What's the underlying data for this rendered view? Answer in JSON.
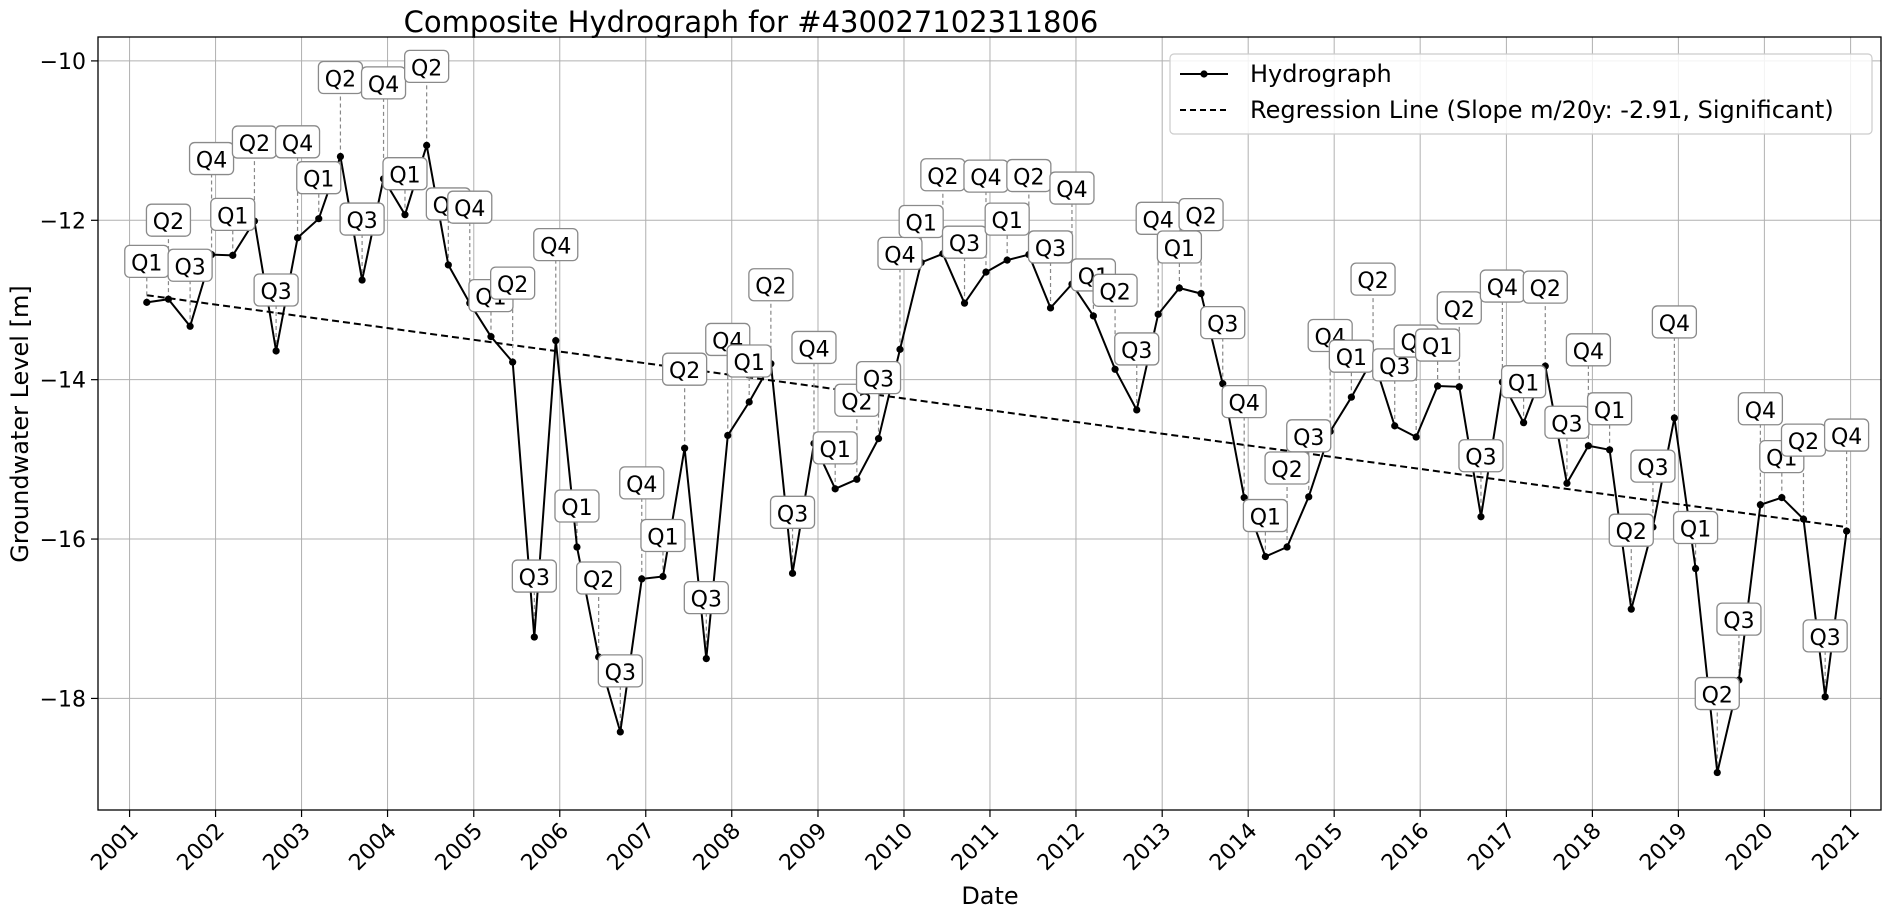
{
  "chart_data": {
    "type": "line",
    "title": "Composite Hydrograph for  #430027102311806",
    "xlabel": "Date",
    "ylabel": "Groundwater Level [m]",
    "x_ticks": [
      "2001",
      "2002",
      "2003",
      "2004",
      "2005",
      "2006",
      "2007",
      "2008",
      "2009",
      "2010",
      "2011",
      "2012",
      "2013",
      "2014",
      "2015",
      "2016",
      "2017",
      "2018",
      "2019",
      "2020",
      "2021"
    ],
    "y_ticks": [
      -18,
      -16,
      -14,
      -12,
      -10
    ],
    "y_tick_labels": [
      "−18",
      "−16",
      "−14",
      "−12",
      "−10"
    ],
    "ylim": [
      -19.4,
      -9.7
    ],
    "xlim": [
      "2000-08-20",
      "2021-05-10"
    ],
    "grid": true,
    "legend_position": "top-right",
    "series": [
      {
        "name": "Hydrograph",
        "style": "solid line with dot markers",
        "color": "#000000",
        "points": [
          {
            "x": "2001-03-15",
            "y": -13.03,
            "label": "Q1"
          },
          {
            "x": "2001-06-15",
            "y": -12.99,
            "label": "Q2"
          },
          {
            "x": "2001-09-15",
            "y": -13.33,
            "label": "Q3"
          },
          {
            "x": "2001-12-15",
            "y": -12.43,
            "label": "Q4"
          },
          {
            "x": "2002-03-15",
            "y": -12.44,
            "label": "Q1"
          },
          {
            "x": "2002-06-15",
            "y": -12.01,
            "label": "Q2"
          },
          {
            "x": "2002-09-15",
            "y": -13.64,
            "label": "Q3"
          },
          {
            "x": "2002-12-15",
            "y": -12.22,
            "label": "Q4"
          },
          {
            "x": "2003-03-15",
            "y": -11.98,
            "label": "Q1"
          },
          {
            "x": "2003-06-15",
            "y": -11.2,
            "label": "Q2"
          },
          {
            "x": "2003-09-15",
            "y": -12.75,
            "label": "Q3"
          },
          {
            "x": "2003-12-15",
            "y": -11.48,
            "label": "Q4"
          },
          {
            "x": "2004-03-15",
            "y": -11.93,
            "label": "Q1"
          },
          {
            "x": "2004-06-15",
            "y": -11.06,
            "label": "Q2"
          },
          {
            "x": "2004-09-15",
            "y": -12.56,
            "label": "Q3"
          },
          {
            "x": "2004-12-15",
            "y": -13.04,
            "label": "Q4"
          },
          {
            "x": "2005-03-15",
            "y": -13.46,
            "label": "Q1"
          },
          {
            "x": "2005-06-15",
            "y": -13.78,
            "label": "Q2"
          },
          {
            "x": "2005-09-15",
            "y": -17.23,
            "label": "Q3"
          },
          {
            "x": "2005-12-15",
            "y": -13.51,
            "label": "Q4"
          },
          {
            "x": "2006-03-15",
            "y": -16.1,
            "label": "Q1"
          },
          {
            "x": "2006-06-15",
            "y": -17.48,
            "label": "Q2"
          },
          {
            "x": "2006-09-15",
            "y": -18.42,
            "label": "Q3"
          },
          {
            "x": "2006-12-15",
            "y": -16.5,
            "label": "Q4"
          },
          {
            "x": "2007-03-15",
            "y": -16.47,
            "label": "Q1"
          },
          {
            "x": "2007-06-15",
            "y": -14.86,
            "label": "Q2"
          },
          {
            "x": "2007-09-15",
            "y": -17.5,
            "label": "Q3"
          },
          {
            "x": "2007-12-15",
            "y": -14.7,
            "label": "Q4"
          },
          {
            "x": "2008-03-15",
            "y": -14.28,
            "label": "Q1"
          },
          {
            "x": "2008-06-15",
            "y": -13.8,
            "label": "Q2"
          },
          {
            "x": "2008-09-15",
            "y": -16.43,
            "label": "Q3"
          },
          {
            "x": "2008-12-15",
            "y": -14.8,
            "label": "Q4"
          },
          {
            "x": "2009-03-15",
            "y": -15.37,
            "label": "Q1"
          },
          {
            "x": "2009-06-15",
            "y": -15.25,
            "label": "Q2"
          },
          {
            "x": "2009-09-15",
            "y": -14.74,
            "label": "Q3"
          },
          {
            "x": "2009-12-15",
            "y": -13.62,
            "label": "Q4"
          },
          {
            "x": "2010-03-15",
            "y": -12.53,
            "label": "Q1"
          },
          {
            "x": "2010-06-15",
            "y": -12.42,
            "label": "Q2"
          },
          {
            "x": "2010-09-15",
            "y": -13.04,
            "label": "Q3"
          },
          {
            "x": "2010-12-15",
            "y": -12.65,
            "label": "Q4"
          },
          {
            "x": "2011-03-15",
            "y": -12.5,
            "label": "Q1"
          },
          {
            "x": "2011-06-15",
            "y": -12.43,
            "label": "Q2"
          },
          {
            "x": "2011-09-15",
            "y": -13.1,
            "label": "Q3"
          },
          {
            "x": "2011-12-15",
            "y": -12.8,
            "label": "Q4"
          },
          {
            "x": "2012-03-15",
            "y": -13.2,
            "label": "Q1"
          },
          {
            "x": "2012-06-15",
            "y": -13.87,
            "label": "Q2"
          },
          {
            "x": "2012-09-15",
            "y": -14.38,
            "label": "Q3"
          },
          {
            "x": "2012-12-15",
            "y": -13.18,
            "label": "Q4"
          },
          {
            "x": "2013-03-15",
            "y": -12.85,
            "label": "Q1"
          },
          {
            "x": "2013-06-15",
            "y": -12.92,
            "label": "Q2"
          },
          {
            "x": "2013-09-15",
            "y": -14.05,
            "label": "Q3"
          },
          {
            "x": "2013-12-15",
            "y": -15.48,
            "label": "Q4"
          },
          {
            "x": "2014-03-15",
            "y": -16.22,
            "label": "Q1"
          },
          {
            "x": "2014-06-15",
            "y": -16.1,
            "label": "Q2"
          },
          {
            "x": "2014-09-15",
            "y": -15.47,
            "label": "Q3"
          },
          {
            "x": "2014-12-15",
            "y": -14.65,
            "label": "Q4"
          },
          {
            "x": "2015-03-15",
            "y": -14.22,
            "label": "Q1"
          },
          {
            "x": "2015-06-15",
            "y": -13.73,
            "label": "Q2"
          },
          {
            "x": "2015-09-15",
            "y": -14.58,
            "label": "Q3"
          },
          {
            "x": "2015-12-15",
            "y": -14.72,
            "label": "Q4"
          },
          {
            "x": "2016-03-15",
            "y": -14.08,
            "label": "Q1"
          },
          {
            "x": "2016-06-15",
            "y": -14.09,
            "label": "Q2"
          },
          {
            "x": "2016-09-15",
            "y": -15.72,
            "label": "Q3"
          },
          {
            "x": "2016-12-15",
            "y": -14.03,
            "label": "Q4"
          },
          {
            "x": "2017-03-15",
            "y": -14.54,
            "label": "Q1"
          },
          {
            "x": "2017-06-15",
            "y": -13.83,
            "label": "Q2"
          },
          {
            "x": "2017-09-15",
            "y": -15.3,
            "label": "Q3"
          },
          {
            "x": "2017-12-15",
            "y": -14.83,
            "label": "Q4"
          },
          {
            "x": "2018-03-15",
            "y": -14.88,
            "label": "Q1"
          },
          {
            "x": "2018-06-15",
            "y": -16.88,
            "label": "Q2"
          },
          {
            "x": "2018-09-15",
            "y": -15.85,
            "label": "Q3"
          },
          {
            "x": "2018-12-15",
            "y": -14.48,
            "label": "Q4"
          },
          {
            "x": "2019-03-15",
            "y": -16.37,
            "label": "Q1"
          },
          {
            "x": "2019-06-15",
            "y": -18.93,
            "label": "Q2"
          },
          {
            "x": "2019-09-15",
            "y": -17.77,
            "label": "Q3"
          },
          {
            "x": "2019-12-15",
            "y": -15.57,
            "label": "Q4"
          },
          {
            "x": "2020-03-15",
            "y": -15.48,
            "label": "Q1"
          },
          {
            "x": "2020-06-15",
            "y": -15.75,
            "label": "Q2"
          },
          {
            "x": "2020-09-15",
            "y": -17.98,
            "label": "Q3"
          },
          {
            "x": "2020-12-15",
            "y": -15.9,
            "label": "Q4"
          }
        ]
      },
      {
        "name": "Regression Line (Slope m/20y: -2.91, Significant)",
        "style": "dashed",
        "color": "#000000",
        "points": [
          {
            "x": "2001-03-15",
            "y": -12.94
          },
          {
            "x": "2020-12-15",
            "y": -15.85
          }
        ]
      }
    ]
  }
}
